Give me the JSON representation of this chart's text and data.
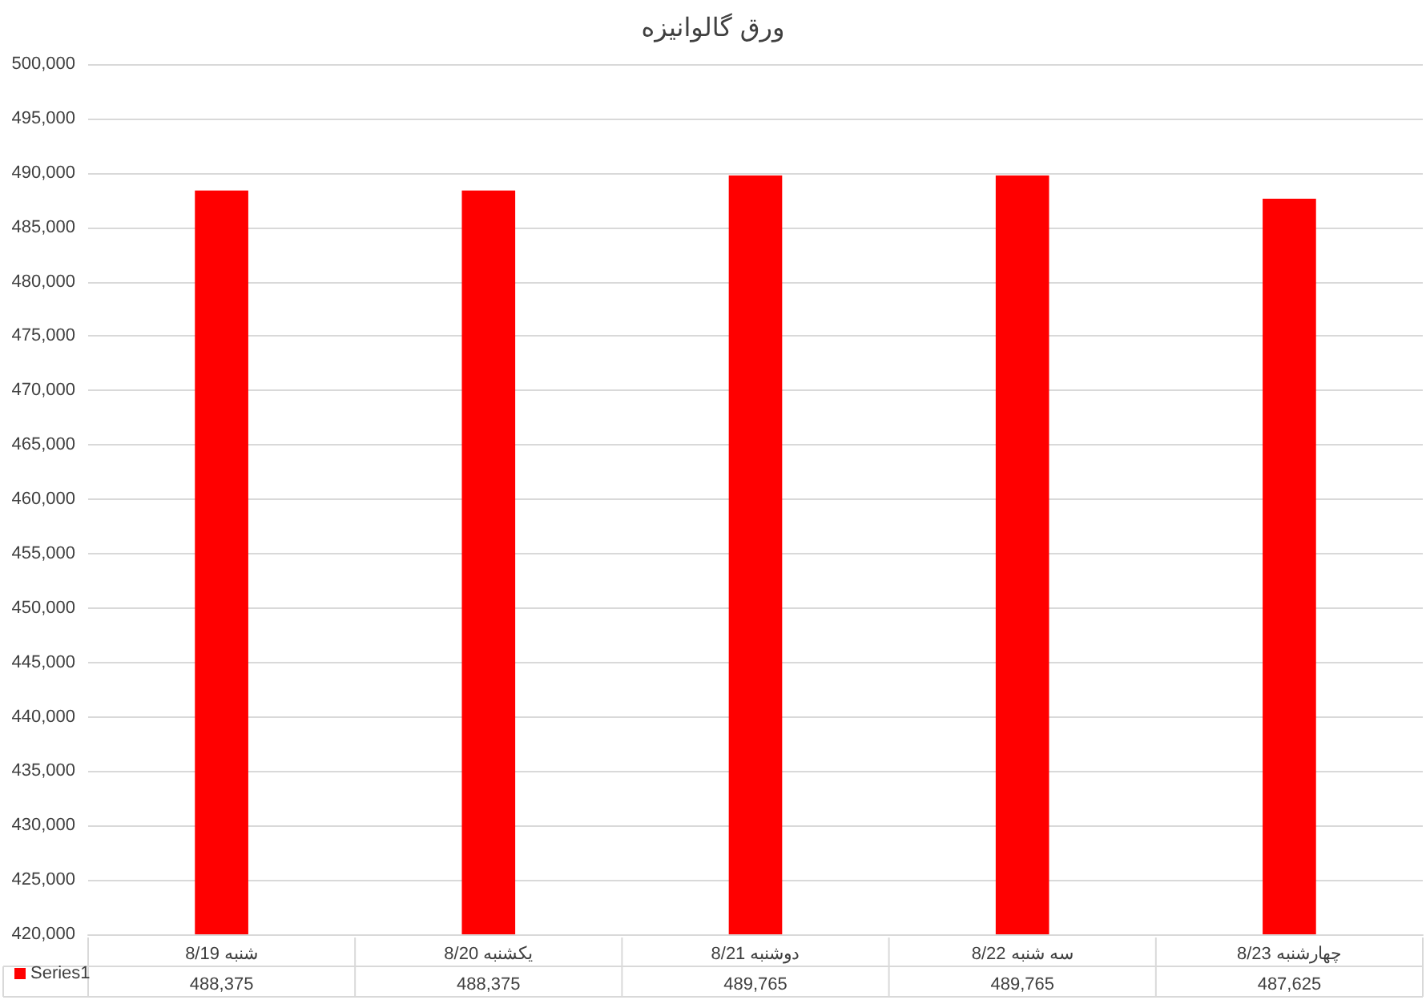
{
  "chart_data": {
    "type": "bar",
    "title": "ورق گالوانیزه",
    "categories": [
      "شنبه 8/19",
      "یکشنبه 8/20",
      "دوشنبه 8/21",
      "سه شنبه 8/22",
      "چهارشنبه 8/23"
    ],
    "series": [
      {
        "name": "Series1",
        "color": "#ff0000",
        "values": [
          488375,
          488375,
          489765,
          489765,
          487625
        ],
        "value_labels": [
          "488,375",
          "488,375",
          "489,765",
          "489,765",
          "487,625"
        ]
      }
    ],
    "ylim": [
      420000,
      500000
    ],
    "yticks": [
      {
        "value": 420000,
        "label": "420,000"
      },
      {
        "value": 425000,
        "label": "425,000"
      },
      {
        "value": 430000,
        "label": "430,000"
      },
      {
        "value": 435000,
        "label": "435,000"
      },
      {
        "value": 440000,
        "label": "440,000"
      },
      {
        "value": 445000,
        "label": "445,000"
      },
      {
        "value": 450000,
        "label": "450,000"
      },
      {
        "value": 455000,
        "label": "455,000"
      },
      {
        "value": 460000,
        "label": "460,000"
      },
      {
        "value": 465000,
        "label": "465,000"
      },
      {
        "value": 470000,
        "label": "470,000"
      },
      {
        "value": 475000,
        "label": "475,000"
      },
      {
        "value": 480000,
        "label": "480,000"
      },
      {
        "value": 485000,
        "label": "485,000"
      },
      {
        "value": 490000,
        "label": "490,000"
      },
      {
        "value": 495000,
        "label": "495,000"
      },
      {
        "value": 500000,
        "label": "500,000"
      }
    ],
    "grid": "y",
    "legend": "bottom left"
  }
}
